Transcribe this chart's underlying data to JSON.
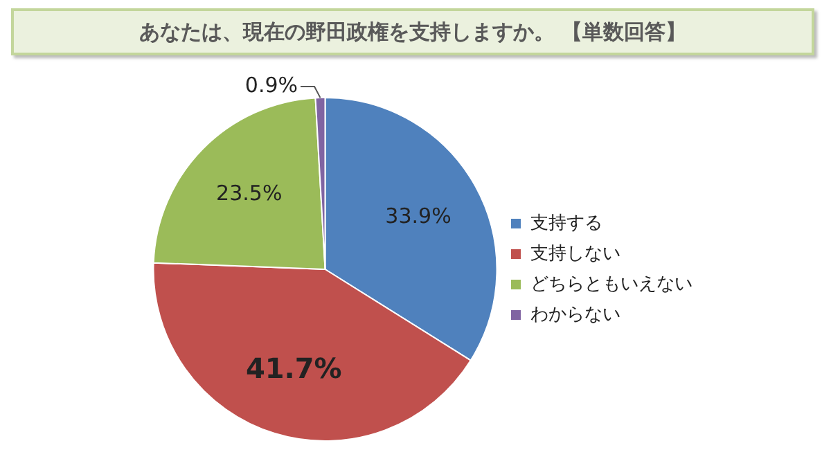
{
  "chart_data": {
    "type": "pie",
    "title": "あなたは、現在の野田政権を支持しますか。 【単数回答】",
    "categories": [
      "支持する",
      "支持しない",
      "どちらともいえない",
      "わからない"
    ],
    "values": [
      33.9,
      41.7,
      23.5,
      0.9
    ],
    "colors": [
      "#4f81bd",
      "#c0504d",
      "#9bbb59",
      "#8064a2"
    ],
    "value_labels": [
      "33.9%",
      "41.7%",
      "23.5%",
      "0.9%"
    ],
    "legend": "right"
  }
}
